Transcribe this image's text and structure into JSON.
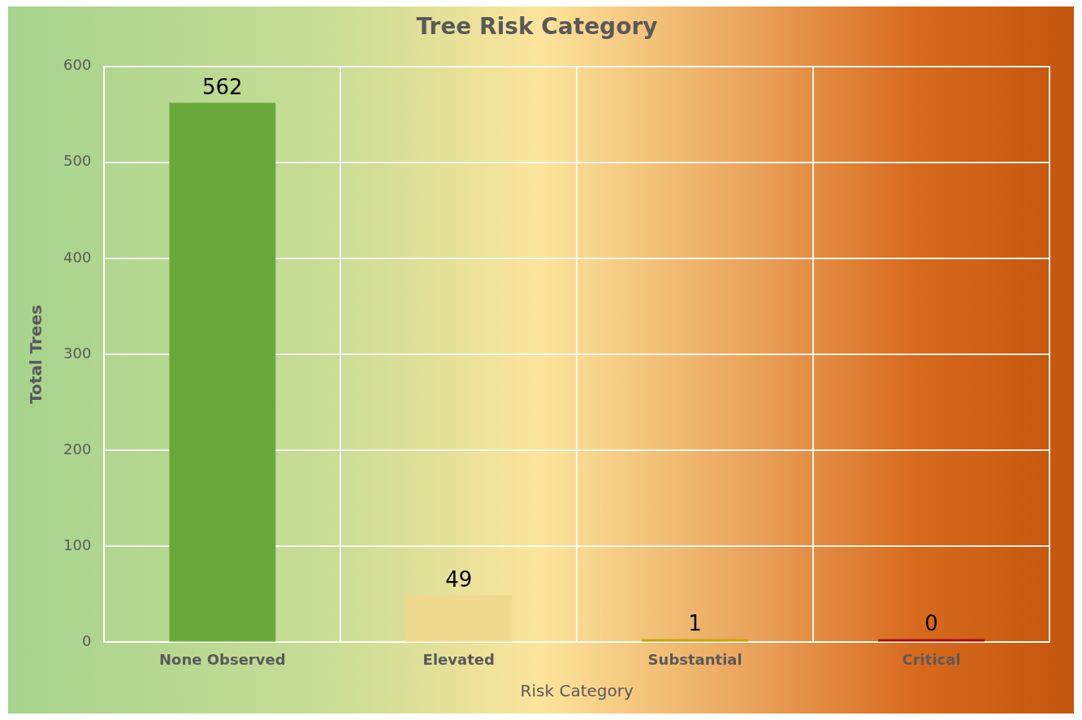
{
  "chart_data": {
    "type": "bar",
    "title": "Tree Risk Category",
    "xlabel": "Risk Category",
    "ylabel": "Total Trees",
    "categories": [
      "None Observed",
      "Elevated",
      "Substantial",
      "Critical"
    ],
    "values": [
      562,
      49,
      1,
      0
    ],
    "colors": [
      "#6aa83c",
      "#efd98e",
      "#c9a100",
      "#a30d0d"
    ],
    "ylim": [
      0,
      600
    ],
    "yticks": [
      0,
      100,
      200,
      300,
      400,
      500,
      600
    ],
    "grid": true,
    "data_labels": true
  }
}
